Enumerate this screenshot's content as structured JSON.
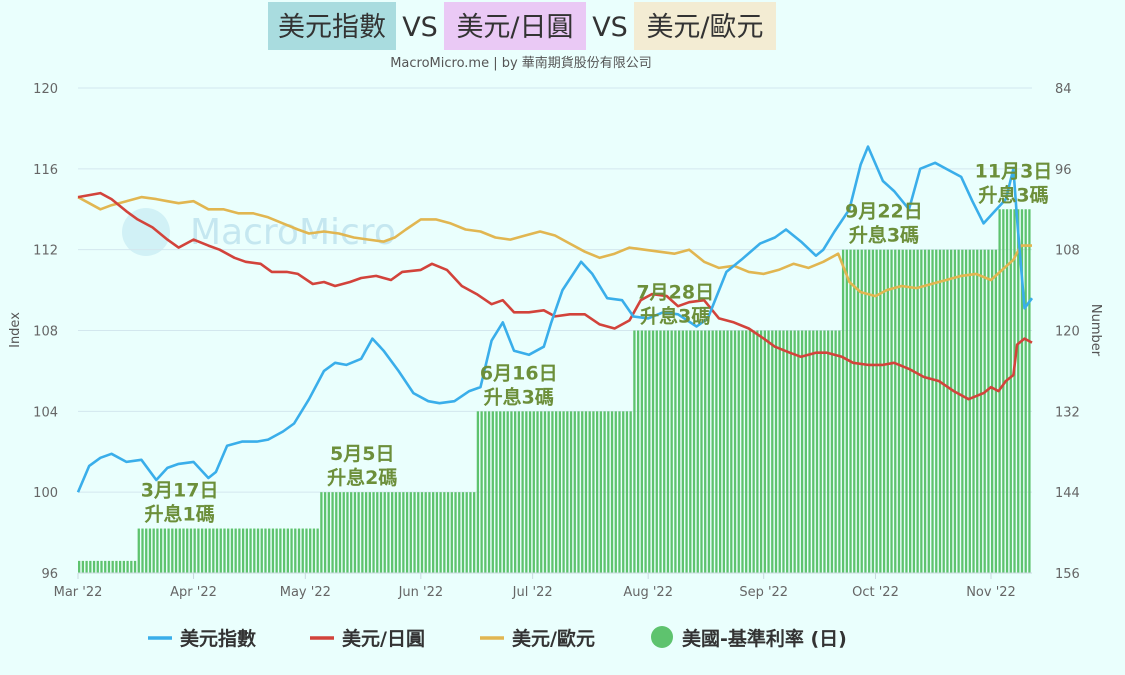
{
  "title_parts": [
    "美元指數",
    " VS ",
    "美元/日圓",
    " VS ",
    "美元/歐元"
  ],
  "title_colors": {
    "dxy": "#a9dcdf",
    "usdjpy": "#eac9f5",
    "usdeur": "#f3ecd3"
  },
  "subtitle": "MacroMicro.me | by 華南期貨股份有限公司",
  "watermark": "MacroMicro",
  "chart_data": {
    "type": "line+bar",
    "y_left": {
      "label": "Index",
      "min": 96,
      "max": 120,
      "ticks": [
        96,
        100,
        104,
        108,
        112,
        116,
        120
      ]
    },
    "y_right": {
      "label": "Number",
      "min": 84,
      "max": 156,
      "reversed": true,
      "ticks": [
        84,
        96,
        108,
        120,
        132,
        144,
        156
      ]
    },
    "x": {
      "start": "2022-03-01",
      "end": "2022-11-12",
      "ticks": [
        {
          "date": "2022-03-01",
          "label": "Mar '22"
        },
        {
          "date": "2022-04-01",
          "label": "Apr '22"
        },
        {
          "date": "2022-05-01",
          "label": "May '22"
        },
        {
          "date": "2022-06-01",
          "label": "Jun '22"
        },
        {
          "date": "2022-07-01",
          "label": "Jul '22"
        },
        {
          "date": "2022-08-01",
          "label": "Aug '22"
        },
        {
          "date": "2022-09-01",
          "label": "Sep '22"
        },
        {
          "date": "2022-10-01",
          "label": "Oct '22"
        },
        {
          "date": "2022-11-01",
          "label": "Nov '22"
        }
      ]
    },
    "series": [
      {
        "name": "美元指數",
        "color": "#3aaeea",
        "axis": "left",
        "points": [
          [
            "2022-03-01",
            100.0
          ],
          [
            "2022-03-04",
            101.3
          ],
          [
            "2022-03-07",
            101.7
          ],
          [
            "2022-03-10",
            101.9
          ],
          [
            "2022-03-14",
            101.5
          ],
          [
            "2022-03-18",
            101.6
          ],
          [
            "2022-03-22",
            100.6
          ],
          [
            "2022-03-25",
            101.2
          ],
          [
            "2022-03-28",
            101.4
          ],
          [
            "2022-04-01",
            101.5
          ],
          [
            "2022-04-05",
            100.7
          ],
          [
            "2022-04-07",
            101.0
          ],
          [
            "2022-04-10",
            102.3
          ],
          [
            "2022-04-14",
            102.5
          ],
          [
            "2022-04-18",
            102.5
          ],
          [
            "2022-04-21",
            102.6
          ],
          [
            "2022-04-25",
            103.0
          ],
          [
            "2022-04-28",
            103.4
          ],
          [
            "2022-05-02",
            104.6
          ],
          [
            "2022-05-06",
            106.0
          ],
          [
            "2022-05-09",
            106.4
          ],
          [
            "2022-05-12",
            106.3
          ],
          [
            "2022-05-16",
            106.6
          ],
          [
            "2022-05-19",
            107.6
          ],
          [
            "2022-05-22",
            107.0
          ],
          [
            "2022-05-26",
            106.0
          ],
          [
            "2022-05-30",
            104.9
          ],
          [
            "2022-06-03",
            104.5
          ],
          [
            "2022-06-06",
            104.4
          ],
          [
            "2022-06-10",
            104.5
          ],
          [
            "2022-06-14",
            105.0
          ],
          [
            "2022-06-17",
            105.2
          ],
          [
            "2022-06-20",
            107.5
          ],
          [
            "2022-06-23",
            108.4
          ],
          [
            "2022-06-26",
            107.0
          ],
          [
            "2022-06-30",
            106.8
          ],
          [
            "2022-07-04",
            107.2
          ],
          [
            "2022-07-06",
            108.4
          ],
          [
            "2022-07-09",
            110.0
          ],
          [
            "2022-07-14",
            111.4
          ],
          [
            "2022-07-17",
            110.8
          ],
          [
            "2022-07-21",
            109.6
          ],
          [
            "2022-07-25",
            109.5
          ],
          [
            "2022-07-28",
            108.7
          ],
          [
            "2022-08-01",
            108.6
          ],
          [
            "2022-08-05",
            108.9
          ],
          [
            "2022-08-09",
            108.8
          ],
          [
            "2022-08-14",
            108.2
          ],
          [
            "2022-08-17",
            108.6
          ],
          [
            "2022-08-22",
            110.9
          ],
          [
            "2022-08-26",
            111.5
          ],
          [
            "2022-08-31",
            112.3
          ],
          [
            "2022-09-04",
            112.6
          ],
          [
            "2022-09-07",
            113.0
          ],
          [
            "2022-09-11",
            112.4
          ],
          [
            "2022-09-15",
            111.7
          ],
          [
            "2022-09-17",
            112.0
          ],
          [
            "2022-09-20",
            112.9
          ],
          [
            "2022-09-24",
            114.0
          ],
          [
            "2022-09-27",
            116.2
          ],
          [
            "2022-09-29",
            117.1
          ],
          [
            "2022-10-03",
            115.4
          ],
          [
            "2022-10-06",
            114.9
          ],
          [
            "2022-10-10",
            114.0
          ],
          [
            "2022-10-13",
            116.0
          ],
          [
            "2022-10-17",
            116.3
          ],
          [
            "2022-10-21",
            115.9
          ],
          [
            "2022-10-24",
            115.6
          ],
          [
            "2022-10-27",
            114.4
          ],
          [
            "2022-10-30",
            113.3
          ],
          [
            "2022-11-02",
            113.9
          ],
          [
            "2022-11-05",
            114.5
          ],
          [
            "2022-11-07",
            116.0
          ],
          [
            "2022-11-08",
            113.5
          ],
          [
            "2022-11-10",
            109.1
          ],
          [
            "2022-11-12",
            109.6
          ]
        ]
      },
      {
        "name": "美元/日圓",
        "color": "#d2433b",
        "axis": "left",
        "points": [
          [
            "2022-03-01",
            114.6
          ],
          [
            "2022-03-04",
            114.7
          ],
          [
            "2022-03-07",
            114.8
          ],
          [
            "2022-03-10",
            114.5
          ],
          [
            "2022-03-14",
            113.9
          ],
          [
            "2022-03-17",
            113.5
          ],
          [
            "2022-03-21",
            113.1
          ],
          [
            "2022-03-25",
            112.5
          ],
          [
            "2022-03-28",
            112.1
          ],
          [
            "2022-04-01",
            112.5
          ],
          [
            "2022-04-05",
            112.2
          ],
          [
            "2022-04-08",
            112.0
          ],
          [
            "2022-04-12",
            111.6
          ],
          [
            "2022-04-15",
            111.4
          ],
          [
            "2022-04-19",
            111.3
          ],
          [
            "2022-04-22",
            110.9
          ],
          [
            "2022-04-26",
            110.9
          ],
          [
            "2022-04-29",
            110.8
          ],
          [
            "2022-05-03",
            110.3
          ],
          [
            "2022-05-06",
            110.4
          ],
          [
            "2022-05-09",
            110.2
          ],
          [
            "2022-05-13",
            110.4
          ],
          [
            "2022-05-16",
            110.6
          ],
          [
            "2022-05-20",
            110.7
          ],
          [
            "2022-05-24",
            110.5
          ],
          [
            "2022-05-27",
            110.9
          ],
          [
            "2022-06-01",
            111.0
          ],
          [
            "2022-06-04",
            111.3
          ],
          [
            "2022-06-08",
            111.0
          ],
          [
            "2022-06-12",
            110.2
          ],
          [
            "2022-06-16",
            109.8
          ],
          [
            "2022-06-20",
            109.3
          ],
          [
            "2022-06-23",
            109.5
          ],
          [
            "2022-06-26",
            108.9
          ],
          [
            "2022-06-30",
            108.9
          ],
          [
            "2022-07-04",
            109.0
          ],
          [
            "2022-07-07",
            108.7
          ],
          [
            "2022-07-11",
            108.8
          ],
          [
            "2022-07-15",
            108.8
          ],
          [
            "2022-07-19",
            108.3
          ],
          [
            "2022-07-23",
            108.1
          ],
          [
            "2022-07-27",
            108.5
          ],
          [
            "2022-07-30",
            109.5
          ],
          [
            "2022-08-02",
            109.8
          ],
          [
            "2022-08-06",
            109.7
          ],
          [
            "2022-08-09",
            109.2
          ],
          [
            "2022-08-12",
            109.4
          ],
          [
            "2022-08-16",
            109.5
          ],
          [
            "2022-08-20",
            108.6
          ],
          [
            "2022-08-24",
            108.4
          ],
          [
            "2022-08-28",
            108.1
          ],
          [
            "2022-09-01",
            107.6
          ],
          [
            "2022-09-04",
            107.2
          ],
          [
            "2022-09-08",
            106.9
          ],
          [
            "2022-09-11",
            106.7
          ],
          [
            "2022-09-15",
            106.9
          ],
          [
            "2022-09-18",
            106.9
          ],
          [
            "2022-09-22",
            106.7
          ],
          [
            "2022-09-25",
            106.4
          ],
          [
            "2022-09-29",
            106.3
          ],
          [
            "2022-10-03",
            106.3
          ],
          [
            "2022-10-06",
            106.4
          ],
          [
            "2022-10-10",
            106.1
          ],
          [
            "2022-10-14",
            105.7
          ],
          [
            "2022-10-18",
            105.5
          ],
          [
            "2022-10-22",
            105.0
          ],
          [
            "2022-10-26",
            104.6
          ],
          [
            "2022-10-30",
            104.9
          ],
          [
            "2022-11-01",
            105.2
          ],
          [
            "2022-11-03",
            105.0
          ],
          [
            "2022-11-05",
            105.5
          ],
          [
            "2022-11-07",
            105.8
          ],
          [
            "2022-11-08",
            107.3
          ],
          [
            "2022-11-10",
            107.6
          ],
          [
            "2022-11-12",
            107.4
          ]
        ]
      },
      {
        "name": "美元/歐元",
        "color": "#e1b651",
        "axis": "left",
        "points": [
          [
            "2022-03-01",
            114.6
          ],
          [
            "2022-03-04",
            114.3
          ],
          [
            "2022-03-07",
            114.0
          ],
          [
            "2022-03-10",
            114.2
          ],
          [
            "2022-03-14",
            114.4
          ],
          [
            "2022-03-18",
            114.6
          ],
          [
            "2022-03-22",
            114.5
          ],
          [
            "2022-03-25",
            114.4
          ],
          [
            "2022-03-28",
            114.3
          ],
          [
            "2022-04-01",
            114.4
          ],
          [
            "2022-04-05",
            114.0
          ],
          [
            "2022-04-09",
            114.0
          ],
          [
            "2022-04-13",
            113.8
          ],
          [
            "2022-04-17",
            113.8
          ],
          [
            "2022-04-21",
            113.6
          ],
          [
            "2022-04-25",
            113.3
          ],
          [
            "2022-04-29",
            113.0
          ],
          [
            "2022-05-02",
            112.8
          ],
          [
            "2022-05-06",
            112.9
          ],
          [
            "2022-05-10",
            112.8
          ],
          [
            "2022-05-14",
            112.6
          ],
          [
            "2022-05-18",
            112.5
          ],
          [
            "2022-05-22",
            112.4
          ],
          [
            "2022-05-25",
            112.6
          ],
          [
            "2022-05-28",
            113.0
          ],
          [
            "2022-06-01",
            113.5
          ],
          [
            "2022-06-05",
            113.5
          ],
          [
            "2022-06-09",
            113.3
          ],
          [
            "2022-06-13",
            113.0
          ],
          [
            "2022-06-17",
            112.9
          ],
          [
            "2022-06-21",
            112.6
          ],
          [
            "2022-06-25",
            112.5
          ],
          [
            "2022-06-29",
            112.7
          ],
          [
            "2022-07-03",
            112.9
          ],
          [
            "2022-07-07",
            112.7
          ],
          [
            "2022-07-11",
            112.3
          ],
          [
            "2022-07-15",
            111.9
          ],
          [
            "2022-07-19",
            111.6
          ],
          [
            "2022-07-23",
            111.8
          ],
          [
            "2022-07-27",
            112.1
          ],
          [
            "2022-07-31",
            112.0
          ],
          [
            "2022-08-04",
            111.9
          ],
          [
            "2022-08-08",
            111.8
          ],
          [
            "2022-08-12",
            112.0
          ],
          [
            "2022-08-16",
            111.4
          ],
          [
            "2022-08-20",
            111.1
          ],
          [
            "2022-08-24",
            111.2
          ],
          [
            "2022-08-28",
            110.9
          ],
          [
            "2022-09-01",
            110.8
          ],
          [
            "2022-09-05",
            111.0
          ],
          [
            "2022-09-09",
            111.3
          ],
          [
            "2022-09-13",
            111.1
          ],
          [
            "2022-09-17",
            111.4
          ],
          [
            "2022-09-21",
            111.8
          ],
          [
            "2022-09-24",
            110.4
          ],
          [
            "2022-09-27",
            109.9
          ],
          [
            "2022-10-01",
            109.7
          ],
          [
            "2022-10-04",
            110.0
          ],
          [
            "2022-10-08",
            110.2
          ],
          [
            "2022-10-12",
            110.1
          ],
          [
            "2022-10-16",
            110.3
          ],
          [
            "2022-10-20",
            110.5
          ],
          [
            "2022-10-24",
            110.7
          ],
          [
            "2022-10-28",
            110.8
          ],
          [
            "2022-11-01",
            110.5
          ],
          [
            "2022-11-04",
            111.0
          ],
          [
            "2022-11-07",
            111.5
          ],
          [
            "2022-11-09",
            112.2
          ],
          [
            "2022-11-12",
            112.2
          ]
        ]
      },
      {
        "name": "美國-基準利率 (日)",
        "color": "#5ec36e",
        "axis": "right",
        "style": "step-bars",
        "steps": [
          {
            "from": "2022-03-01",
            "value": 154.2
          },
          {
            "from": "2022-03-17",
            "value": 149.4
          },
          {
            "from": "2022-05-05",
            "value": 144.0
          },
          {
            "from": "2022-06-16",
            "value": 132.0
          },
          {
            "from": "2022-07-28",
            "value": 120.0
          },
          {
            "from": "2022-09-22",
            "value": 108.0
          },
          {
            "from": "2022-11-03",
            "value": 102.0
          },
          {
            "to": "2022-11-12"
          }
        ]
      }
    ],
    "annotations": [
      {
        "date": "2022-03-17",
        "line1": "3月17日",
        "line2": "升息1碼"
      },
      {
        "date": "2022-05-05",
        "line1": "5月5日",
        "line2": "升息2碼"
      },
      {
        "date": "2022-06-16",
        "line1": "6月16日",
        "line2": "升息3碼"
      },
      {
        "date": "2022-07-28",
        "line1": "7月28日",
        "line2": "升息3碼"
      },
      {
        "date": "2022-09-22",
        "line1": "9月22日",
        "line2": "升息3碼"
      },
      {
        "date": "2022-11-03",
        "line1": "11月3日",
        "line2": "升息3碼"
      }
    ],
    "legend_position": "bottom"
  }
}
